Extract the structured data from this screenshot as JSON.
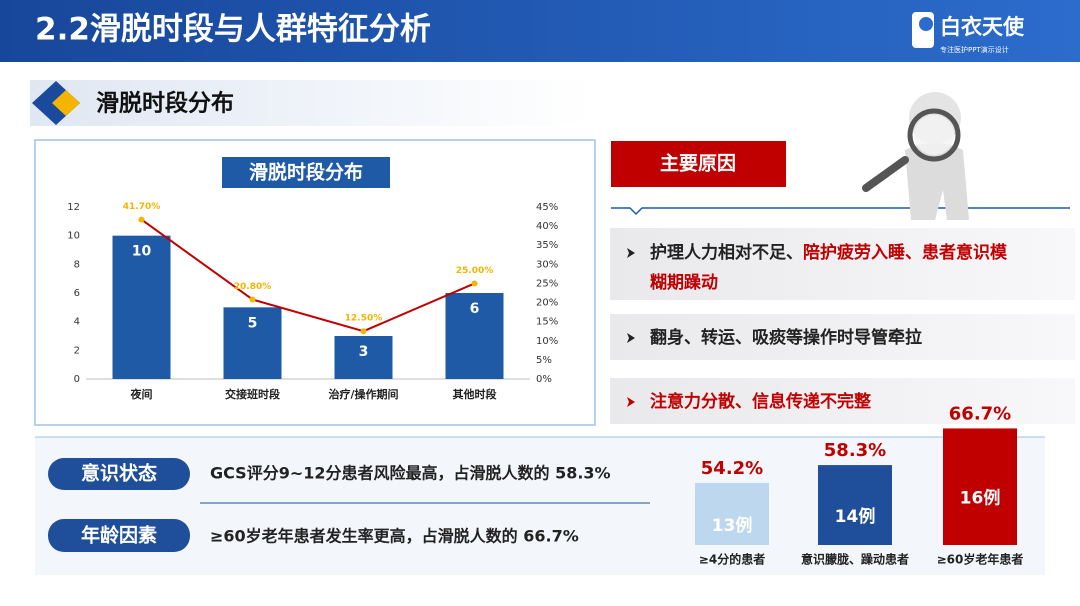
{
  "header": {
    "title": "2.2滑脱时段与人群特征分析",
    "logo": "白衣天使",
    "logo_tagline": "专注医护PPT演示设计"
  },
  "section": {
    "title": "滑脱时段分布"
  },
  "reasons": {
    "title": "主要原因",
    "items": [
      {
        "segments": [
          {
            "text": "护理人力相对不足、",
            "color": "#222222"
          },
          {
            "text": "陪护疲劳入睡、患者意识模糊期躁动",
            "color": "#c00000"
          }
        ]
      },
      {
        "segments": [
          {
            "text": "翻身、转运、吸痰等操作时导管牵拉",
            "color": "#222222"
          }
        ]
      },
      {
        "segments": [
          {
            "text": "注意力分散、信息传递不完整",
            "color": "#c00000"
          }
        ]
      }
    ]
  },
  "factors": [
    {
      "label": "意识状态",
      "text": "GCS评分9~12分患者风险最高，占滑脱人数的 58.3%"
    },
    {
      "label": "年龄因素",
      "text": "≥60岁老年患者发生率更高，占滑脱人数的 66.7%"
    }
  ],
  "chart_data": [
    {
      "type": "combo",
      "title": "滑脱时段分布",
      "categories": [
        "夜间",
        "交接班时段",
        "治疗/操作期间",
        "其他时段"
      ],
      "series": [
        {
          "type": "bar",
          "color": "#1f5aa6",
          "values": [
            10,
            5,
            3,
            6
          ]
        },
        {
          "type": "line",
          "axis": "y2",
          "color": "#c00000",
          "marker_color": "#f5b400",
          "values": [
            41.7,
            20.8,
            12.5,
            25.0
          ],
          "value_labels": [
            "41.70%",
            "20.80%",
            "12.50%",
            "25.00%"
          ]
        }
      ],
      "ylim": [
        0,
        12
      ],
      "yticks": [
        0,
        2,
        4,
        6,
        8,
        10,
        12
      ],
      "y2lim": [
        0,
        45
      ],
      "y2ticks": [
        {
          "value": 0,
          "label": "0%"
        },
        {
          "value": 5,
          "label": "5%"
        },
        {
          "value": 10,
          "label": "10%"
        },
        {
          "value": 15,
          "label": "15%"
        },
        {
          "value": 20,
          "label": "20%"
        },
        {
          "value": 25,
          "label": "25%"
        },
        {
          "value": 30,
          "label": "30%"
        },
        {
          "value": 35,
          "label": "35%"
        },
        {
          "value": 40,
          "label": "40%"
        },
        {
          "value": 45,
          "label": "45%"
        }
      ]
    },
    {
      "type": "bar",
      "categories": [
        "≥4分的患者",
        "意识朦胧、躁动患者",
        "≥60岁老年患者"
      ],
      "values": [
        54.2,
        58.3,
        66.7
      ],
      "value_labels": [
        "54.2%",
        "58.3%",
        "66.7%"
      ],
      "case_labels": [
        "13例",
        "14例",
        "16例"
      ],
      "colors": [
        "#bdd7ee",
        "#1f4e9a",
        "#c00000"
      ],
      "ylim": [
        40,
        70
      ]
    }
  ]
}
